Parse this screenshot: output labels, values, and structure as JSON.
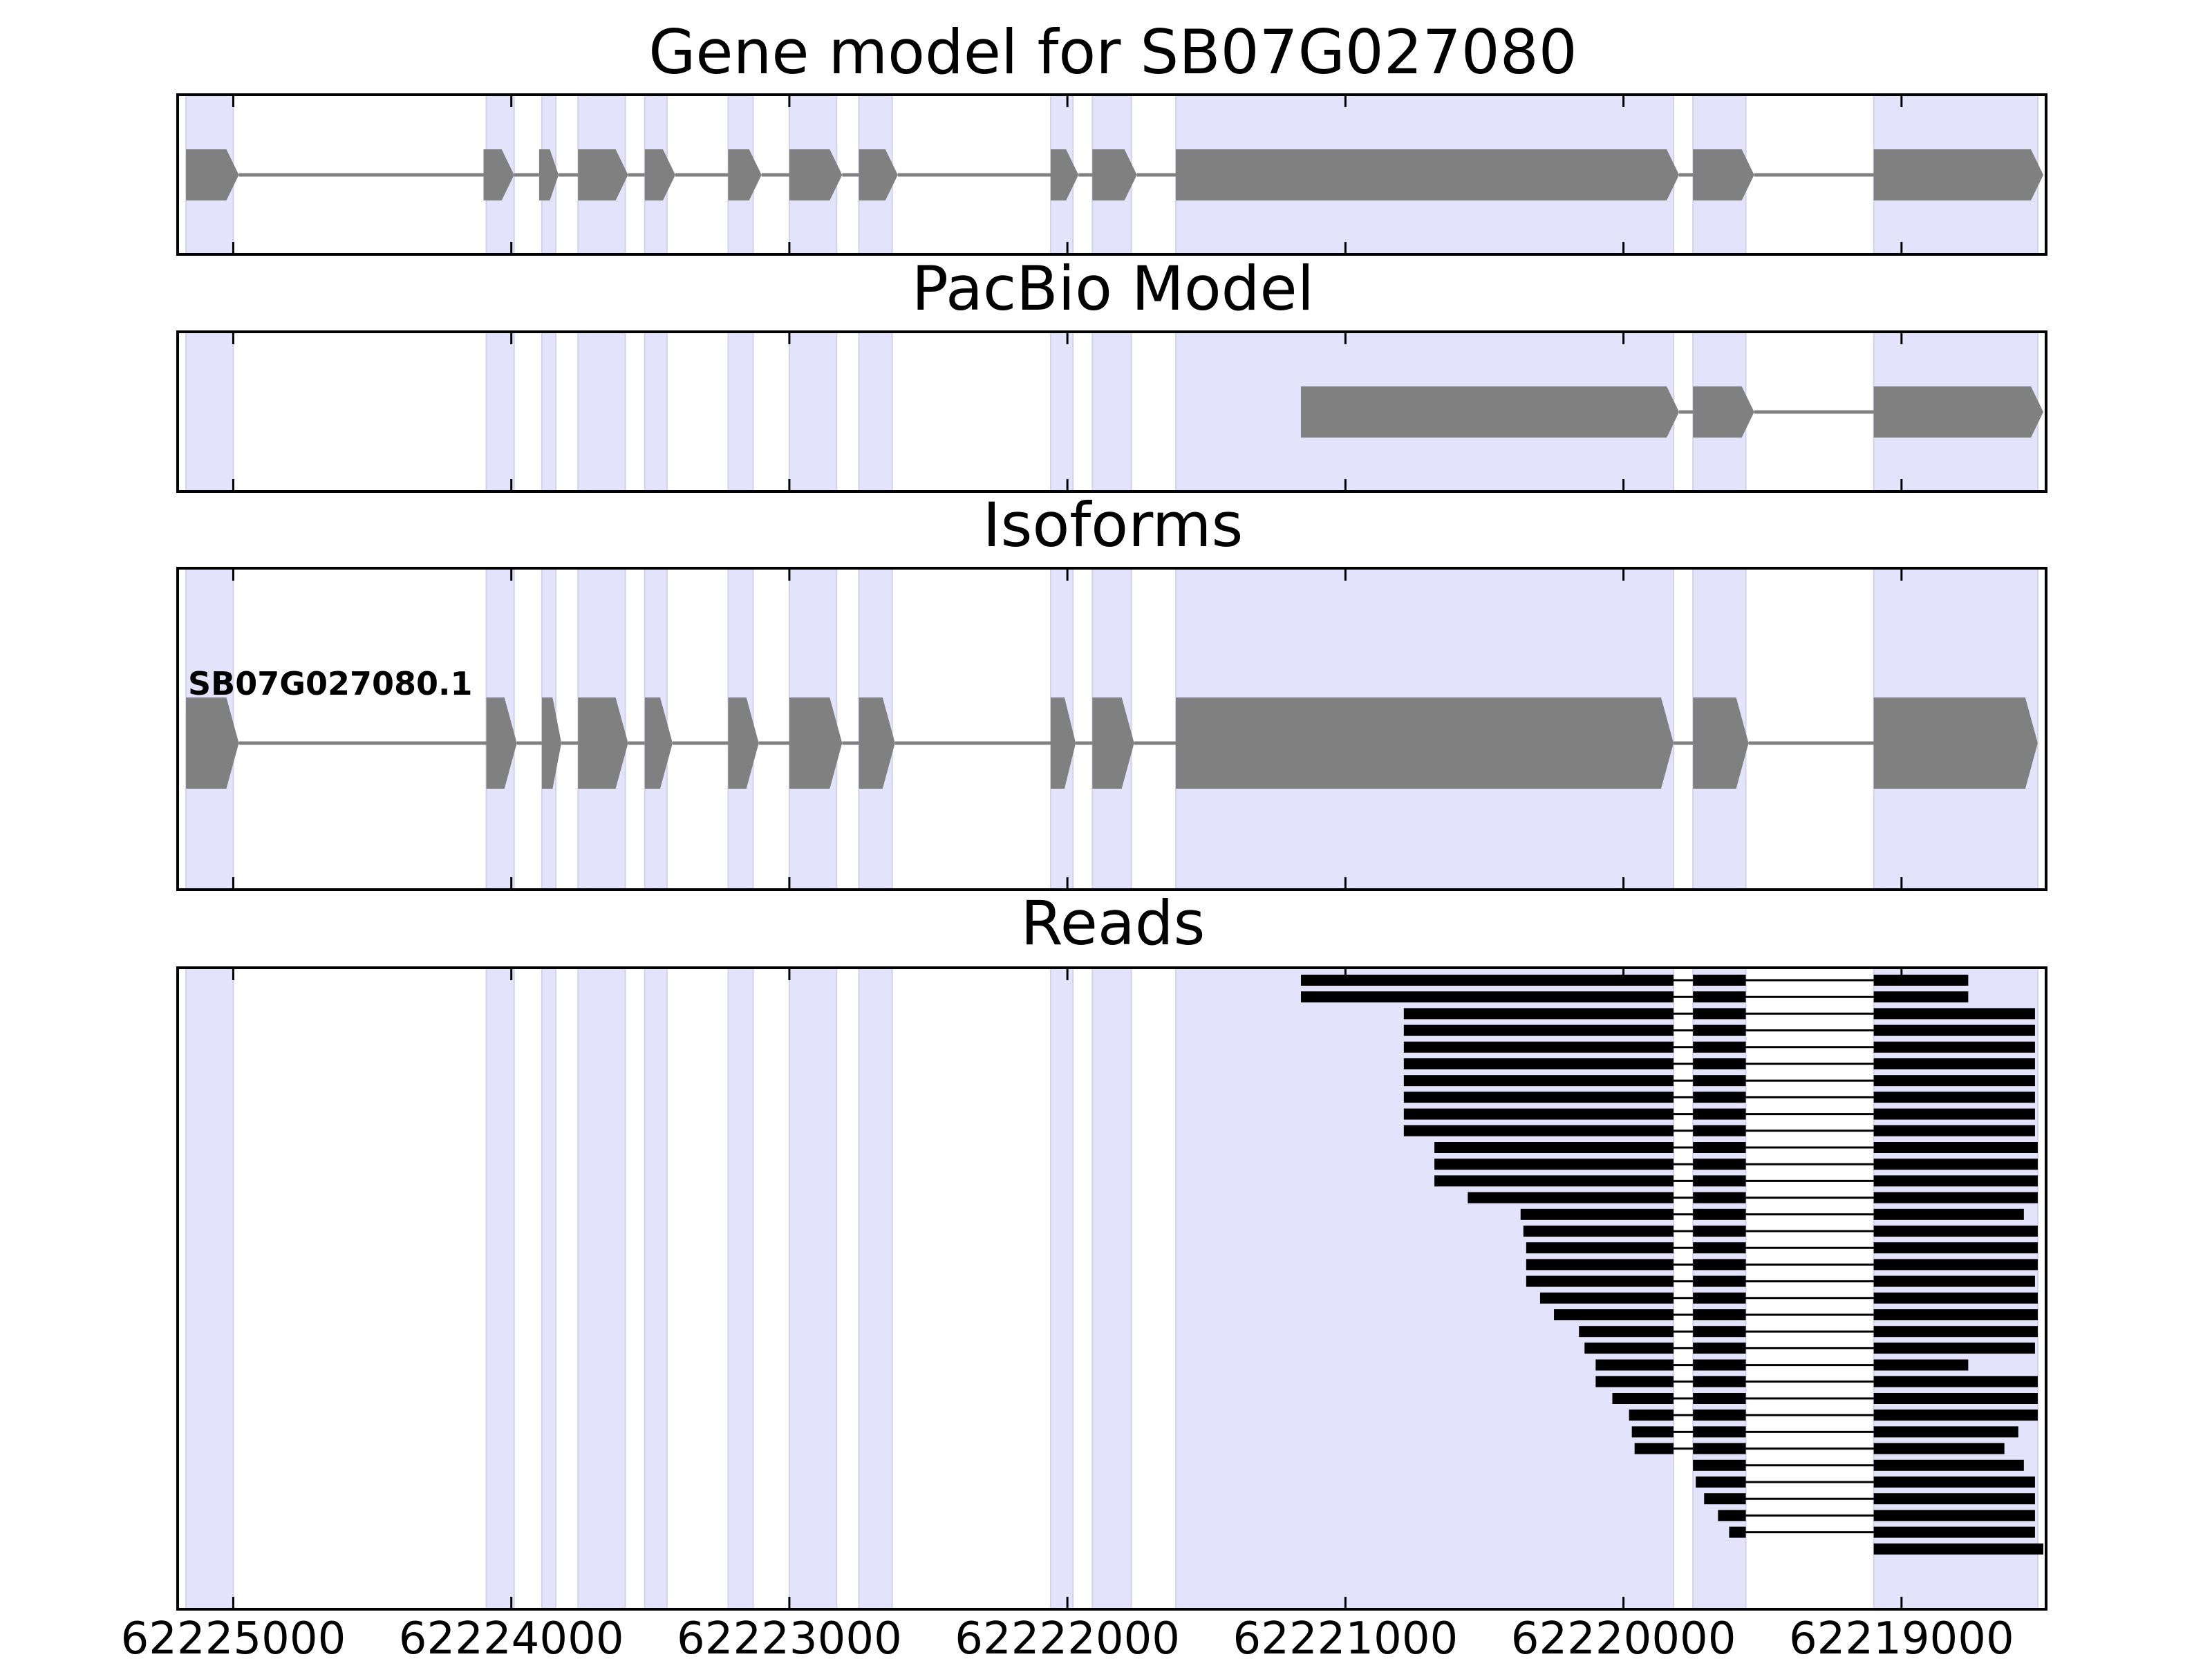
{
  "chart_data": {
    "type": "gene-track",
    "x_axis": {
      "reversed": true,
      "lim": [
        62225200,
        62218480
      ],
      "ticks": [
        62225000,
        62224000,
        62223000,
        62222000,
        62221000,
        62220000,
        62219000
      ],
      "tick_labels": [
        "62225000",
        "62224000",
        "62223000",
        "62222000",
        "62221000",
        "62220000",
        "62219000"
      ]
    },
    "highlight_color": "#e3e3fc",
    "feature_color": "#808080",
    "read_color": "#000000",
    "highlight_regions": [
      [
        62225170,
        62225000
      ],
      [
        62224090,
        62223990
      ],
      [
        62223890,
        62223840
      ],
      [
        62223760,
        62223590
      ],
      [
        62223520,
        62223440
      ],
      [
        62223220,
        62223130
      ],
      [
        62223000,
        62222830
      ],
      [
        62222750,
        62222630
      ],
      [
        62222060,
        62221980
      ],
      [
        62221910,
        62221770
      ],
      [
        62221610,
        62219820
      ],
      [
        62219750,
        62219560
      ],
      [
        62219100,
        62218510
      ]
    ],
    "panels": [
      {
        "title": "Gene model for SB07G027080",
        "kind": "model",
        "isoform_label": "",
        "exons": [
          [
            62225170,
            62224980
          ],
          [
            62224100,
            62223990
          ],
          [
            62223900,
            62223830
          ],
          [
            62223760,
            62223580
          ],
          [
            62223520,
            62223410
          ],
          [
            62223220,
            62223100
          ],
          [
            62223000,
            62222810
          ],
          [
            62222750,
            62222610
          ],
          [
            62222060,
            62221960
          ],
          [
            62221910,
            62221750
          ],
          [
            62221610,
            62219800
          ],
          [
            62219750,
            62219530
          ],
          [
            62219100,
            62218490
          ]
        ]
      },
      {
        "title": "PacBio Model",
        "kind": "model",
        "isoform_label": "",
        "exons": [
          [
            62221160,
            62219800
          ],
          [
            62219750,
            62219530
          ],
          [
            62219100,
            62218490
          ]
        ]
      },
      {
        "title": "Isoforms",
        "kind": "model",
        "isoform_label": "SB07G027080.1",
        "exons": [
          [
            62225170,
            62224980
          ],
          [
            62224090,
            62223980
          ],
          [
            62223890,
            62223820
          ],
          [
            62223760,
            62223580
          ],
          [
            62223520,
            62223420
          ],
          [
            62223220,
            62223110
          ],
          [
            62223000,
            62222810
          ],
          [
            62222750,
            62222620
          ],
          [
            62222060,
            62221970
          ],
          [
            62221910,
            62221760
          ],
          [
            62221610,
            62219820
          ],
          [
            62219750,
            62219550
          ],
          [
            62219100,
            62218510
          ]
        ]
      },
      {
        "title": "Reads",
        "kind": "reads",
        "isoform_label": "",
        "reads": [
          [
            62221160,
            62218760
          ],
          [
            62221160,
            62218760
          ],
          [
            62220790,
            62218520
          ],
          [
            62220790,
            62218520
          ],
          [
            62220790,
            62218520
          ],
          [
            62220790,
            62218520
          ],
          [
            62220790,
            62218520
          ],
          [
            62220790,
            62218520
          ],
          [
            62220790,
            62218520
          ],
          [
            62220790,
            62218520
          ],
          [
            62220680,
            62218510
          ],
          [
            62220680,
            62218510
          ],
          [
            62220680,
            62218510
          ],
          [
            62220560,
            62218510
          ],
          [
            62220370,
            62218560
          ],
          [
            62220360,
            62218510
          ],
          [
            62220350,
            62218510
          ],
          [
            62220350,
            62218510
          ],
          [
            62220350,
            62218520
          ],
          [
            62220300,
            62218510
          ],
          [
            62220250,
            62218510
          ],
          [
            62220160,
            62218510
          ],
          [
            62220140,
            62218520
          ],
          [
            62220100,
            62218760
          ],
          [
            62220100,
            62218510
          ],
          [
            62220040,
            62218510
          ],
          [
            62219980,
            62218510
          ],
          [
            62219970,
            62218580
          ],
          [
            62219960,
            62218630
          ],
          [
            62219750,
            62218560
          ],
          [
            62219740,
            62218520
          ],
          [
            62219710,
            62218520
          ],
          [
            62219660,
            62218520
          ],
          [
            62219620,
            62218520
          ],
          [
            62219100,
            62218490
          ]
        ]
      }
    ]
  }
}
